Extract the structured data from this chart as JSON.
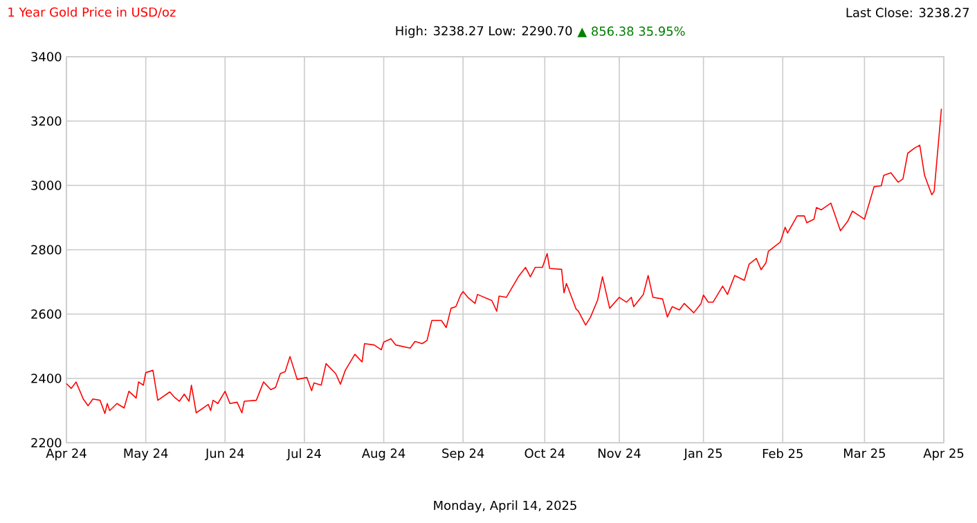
{
  "chart_data": {
    "type": "line",
    "title": "1 Year Gold Price in USD/oz",
    "subtitle": "High: 3238.27 Low: 2290.70",
    "annotations": [
      "▲ 856.38 35.95%",
      "Last Close: 3238.27",
      "Monday, April 14, 2025"
    ],
    "xlim": [
      "2024-04-14",
      "2025-04-14"
    ],
    "xticks": [
      {
        "value": "2024-04-14",
        "label": "Apr 24"
      },
      {
        "value": "2024-05-17",
        "label": "May 24"
      },
      {
        "value": "2024-06-19",
        "label": "Jun 24"
      },
      {
        "value": "2024-07-22",
        "label": "Jul 24"
      },
      {
        "value": "2024-08-24",
        "label": "Aug 24"
      },
      {
        "value": "2024-09-26",
        "label": "Sep 24"
      },
      {
        "value": "2024-10-30",
        "label": "Oct 24"
      },
      {
        "value": "2024-11-30",
        "label": "Nov 24"
      },
      {
        "value": "2025-01-04",
        "label": "Jan 25"
      },
      {
        "value": "2025-02-06",
        "label": "Feb 25"
      },
      {
        "value": "2025-03-12",
        "label": "Mar 25"
      },
      {
        "value": "2025-04-14",
        "label": "Apr 25"
      }
    ],
    "ylim": [
      2200,
      3400
    ],
    "yticks": [
      2200,
      2400,
      2600,
      2800,
      3000,
      3200,
      3400
    ],
    "grid": true,
    "series": [
      {
        "color": "#ff0000",
        "x": [
          "2024-04-14",
          "2024-04-16",
          "2024-04-18",
          "2024-04-21",
          "2024-04-23",
          "2024-04-25",
          "2024-04-28",
          "2024-04-30",
          "2024-05-01",
          "2024-05-02",
          "2024-05-05",
          "2024-05-08",
          "2024-05-10",
          "2024-05-13",
          "2024-05-14",
          "2024-05-16",
          "2024-05-17",
          "2024-05-20",
          "2024-05-22",
          "2024-05-27",
          "2024-05-29",
          "2024-05-31",
          "2024-06-02",
          "2024-06-04",
          "2024-06-05",
          "2024-06-07",
          "2024-06-12",
          "2024-06-13",
          "2024-06-14",
          "2024-06-16",
          "2024-06-19",
          "2024-06-21",
          "2024-06-24",
          "2024-06-26",
          "2024-06-27",
          "2024-07-02",
          "2024-07-05",
          "2024-07-08",
          "2024-07-10",
          "2024-07-12",
          "2024-07-14",
          "2024-07-16",
          "2024-07-19",
          "2024-07-23",
          "2024-07-25",
          "2024-07-26",
          "2024-07-29",
          "2024-07-31",
          "2024-08-04",
          "2024-08-06",
          "2024-08-08",
          "2024-08-12",
          "2024-08-15",
          "2024-08-16",
          "2024-08-20",
          "2024-08-23",
          "2024-08-24",
          "2024-08-27",
          "2024-08-29",
          "2024-09-04",
          "2024-09-06",
          "2024-09-09",
          "2024-09-11",
          "2024-09-13",
          "2024-09-17",
          "2024-09-19",
          "2024-09-21",
          "2024-09-23",
          "2024-09-25",
          "2024-09-26",
          "2024-09-28",
          "2024-10-01",
          "2024-10-02",
          "2024-10-08",
          "2024-10-10",
          "2024-10-11",
          "2024-10-14",
          "2024-10-19",
          "2024-10-22",
          "2024-10-24",
          "2024-10-26",
          "2024-10-29",
          "2024-10-31",
          "2024-11-01",
          "2024-11-06",
          "2024-11-07",
          "2024-11-08",
          "2024-11-12",
          "2024-11-13",
          "2024-11-16",
          "2024-11-18",
          "2024-11-21",
          "2024-11-23",
          "2024-11-26",
          "2024-11-30",
          "2024-12-03",
          "2024-12-05",
          "2024-12-06",
          "2024-12-10",
          "2024-12-12",
          "2024-12-14",
          "2024-12-18",
          "2024-12-20",
          "2024-12-22",
          "2024-12-25",
          "2024-12-27",
          "2024-12-31",
          "2025-01-03",
          "2025-01-04",
          "2025-01-06",
          "2025-01-08",
          "2025-01-12",
          "2025-01-14",
          "2025-01-17",
          "2025-01-21",
          "2025-01-23",
          "2025-01-26",
          "2025-01-28",
          "2025-01-30",
          "2025-01-31",
          "2025-02-05",
          "2025-02-07",
          "2025-02-08",
          "2025-02-12",
          "2025-02-15",
          "2025-02-16",
          "2025-02-19",
          "2025-02-20",
          "2025-02-22",
          "2025-02-26",
          "2025-03-02",
          "2025-03-05",
          "2025-03-07",
          "2025-03-09",
          "2025-03-12",
          "2025-03-14",
          "2025-03-16",
          "2025-03-19",
          "2025-03-20",
          "2025-03-23",
          "2025-03-26",
          "2025-03-28",
          "2025-03-30",
          "2025-04-02",
          "2025-04-04",
          "2025-04-06",
          "2025-04-09",
          "2025-04-10",
          "2025-04-13"
        ],
        "values": [
          2384,
          2369,
          2389,
          2336,
          2315,
          2336,
          2332,
          2291,
          2322,
          2300,
          2322,
          2308,
          2360,
          2339,
          2389,
          2379,
          2418,
          2425,
          2332,
          2358,
          2341,
          2329,
          2351,
          2329,
          2379,
          2293,
          2319,
          2300,
          2332,
          2322,
          2360,
          2322,
          2326,
          2293,
          2329,
          2332,
          2389,
          2365,
          2372,
          2415,
          2421,
          2468,
          2397,
          2403,
          2362,
          2386,
          2379,
          2446,
          2415,
          2382,
          2425,
          2475,
          2451,
          2508,
          2504,
          2489,
          2513,
          2523,
          2504,
          2494,
          2515,
          2508,
          2518,
          2580,
          2580,
          2558,
          2618,
          2623,
          2659,
          2670,
          2652,
          2633,
          2661,
          2642,
          2609,
          2656,
          2652,
          2716,
          2745,
          2716,
          2745,
          2745,
          2788,
          2742,
          2739,
          2666,
          2695,
          2616,
          2609,
          2566,
          2590,
          2644,
          2716,
          2618,
          2652,
          2637,
          2652,
          2623,
          2661,
          2720,
          2652,
          2647,
          2591,
          2623,
          2613,
          2633,
          2604,
          2633,
          2659,
          2637,
          2637,
          2687,
          2661,
          2720,
          2705,
          2755,
          2773,
          2738,
          2759,
          2795,
          2824,
          2870,
          2852,
          2905,
          2905,
          2884,
          2895,
          2931,
          2924,
          2945,
          2859,
          2888,
          2920,
          2910,
          2895,
          2945,
          2996,
          2999,
          3031,
          3039,
          3010,
          3020,
          3100,
          3117,
          3125,
          3031,
          2971,
          2982,
          3238.27
        ]
      }
    ]
  }
}
